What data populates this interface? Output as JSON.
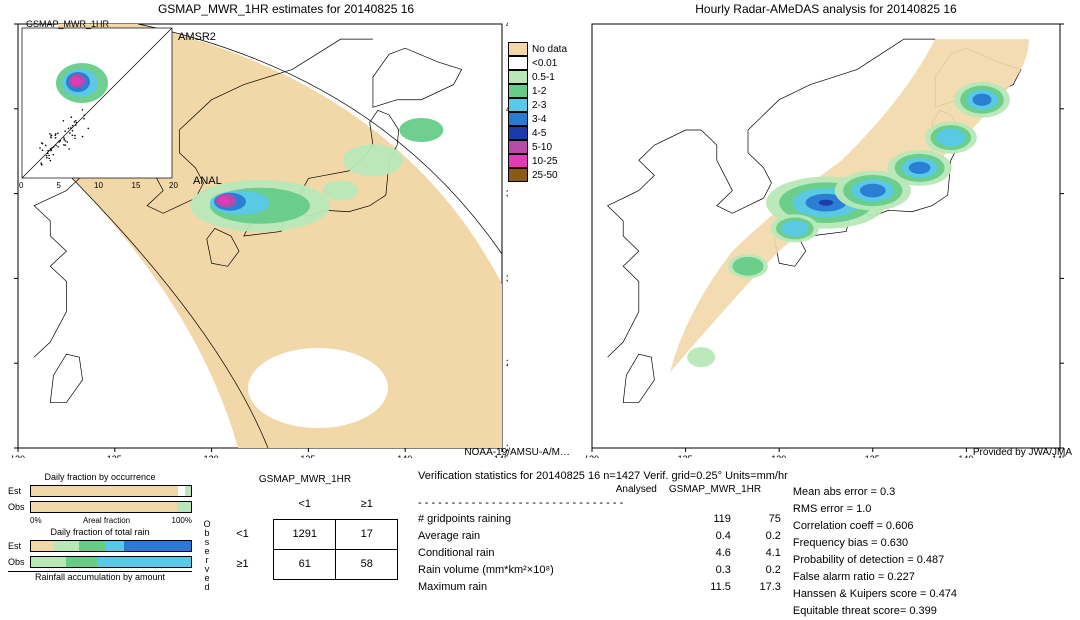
{
  "colors": {
    "nodata": "#f2d8a8",
    "lt001": "#ffffff",
    "b05_1": "#b8e8b8",
    "b1_2": "#66cc88",
    "b2_3": "#5ac8e8",
    "b3_4": "#2a7ad4",
    "b4_5": "#1c3aa8",
    "b5_10": "#b84aa8",
    "b10_25": "#e838b8",
    "b25_50": "#8a5a1a",
    "coast": "#000000",
    "frame": "#000000",
    "box": "#000000"
  },
  "legend": {
    "items": [
      {
        "label": "No data",
        "color": "#f2d8a8"
      },
      {
        "label": "<0.01",
        "color": "#ffffff"
      },
      {
        "label": "0.5-1",
        "color": "#b8e8b8"
      },
      {
        "label": "1-2",
        "color": "#66cc88"
      },
      {
        "label": "2-3",
        "color": "#5ac8e8"
      },
      {
        "label": "3-4",
        "color": "#2a7ad4"
      },
      {
        "label": "4-5",
        "color": "#1c3aa8"
      },
      {
        "label": "5-10",
        "color": "#b84aa8"
      },
      {
        "label": "10-25",
        "color": "#e838b8"
      },
      {
        "label": "25-50",
        "color": "#8a5a1a"
      }
    ]
  },
  "left_map": {
    "title": "GSMAP_MWR_1HR estimates for 20140825 16",
    "satellite": "NOAA-19/AMSU-A/M…",
    "inset_label": "GSMAP_MWR_1HR",
    "swath_label": "AMSR2",
    "anal_label": "ANAL",
    "x_ticks": [
      "120",
      "125",
      "130",
      "135",
      "140",
      "145"
    ],
    "y_ticks": [
      "20",
      "25",
      "30",
      "35",
      "40",
      "45"
    ],
    "inset_x_ticks": [
      "0",
      "5",
      "10",
      "15",
      "20"
    ],
    "inset_y_ticks": [
      "0",
      "5",
      "10",
      "15",
      "20"
    ]
  },
  "right_map": {
    "title": "Hourly Radar-AMeDAS analysis for 20140825 16",
    "credit": "Provided by JWA/JMA",
    "x_ticks": [
      "120",
      "125",
      "130",
      "135",
      "140",
      "145"
    ],
    "y_ticks": [
      "20",
      "25",
      "30",
      "35",
      "40",
      "45"
    ]
  },
  "frac": {
    "title1": "Daily fraction by occurrence",
    "title2": "Daily fraction of total rain",
    "caption": "Rainfall accumulation by amount",
    "axis_label": "Areal fraction",
    "axis_0": "0%",
    "axis_100": "100%",
    "row_labels": {
      "est": "Est",
      "obs": "Obs"
    },
    "occur": {
      "est": [
        {
          "color": "#f2d8a8",
          "pct": 92
        },
        {
          "color": "#ffffff",
          "pct": 4
        },
        {
          "color": "#b8e8b8",
          "pct": 4
        }
      ],
      "obs": [
        {
          "color": "#f2d8a8",
          "pct": 91
        },
        {
          "color": "#b8e8b8",
          "pct": 9
        }
      ]
    },
    "total": {
      "est": [
        {
          "color": "#f2d8a8",
          "pct": 14
        },
        {
          "color": "#b8e8b8",
          "pct": 16
        },
        {
          "color": "#66cc88",
          "pct": 16
        },
        {
          "color": "#5ac8e8",
          "pct": 12
        },
        {
          "color": "#2a7ad4",
          "pct": 42
        }
      ],
      "obs": [
        {
          "color": "#b8e8b8",
          "pct": 22
        },
        {
          "color": "#66cc88",
          "pct": 20
        },
        {
          "color": "#5ac8e8",
          "pct": 58
        }
      ]
    }
  },
  "ctable": {
    "title": "GSMAP_MWR_1HR",
    "col1": "<1",
    "col2": "≥1",
    "row1": "<1",
    "row2": "≥1",
    "side": "Observed",
    "cells": {
      "a": "1291",
      "b": "17",
      "c": "61",
      "d": "58"
    }
  },
  "verif": {
    "title": "Verification statistics for 20140825 16   n=1427   Verif. grid=0.25°   Units=mm/hr",
    "hdr_analysed": "Analysed",
    "hdr_est": "GSMAP_MWR_1HR",
    "rows": [
      {
        "label": "# gridpoints raining",
        "a": "119",
        "b": "75"
      },
      {
        "label": "Average rain",
        "a": "0.4",
        "b": "0.2"
      },
      {
        "label": "Conditional rain",
        "a": "4.6",
        "b": "4.1"
      },
      {
        "label": "Rain volume (mm*km²×10⁸)",
        "a": "0.3",
        "b": "0.2"
      },
      {
        "label": "Maximum rain",
        "a": "11.5",
        "b": "17.3"
      }
    ],
    "metrics": [
      "Mean abs error = 0.3",
      "RMS error = 1.0",
      "Correlation coeff = 0.606",
      "Frequency bias = 0.630",
      "Probability of detection = 0.487",
      "False alarm ratio = 0.227",
      "Hanssen & Kuipers score = 0.474",
      "Equitable threat score= 0.399"
    ]
  }
}
